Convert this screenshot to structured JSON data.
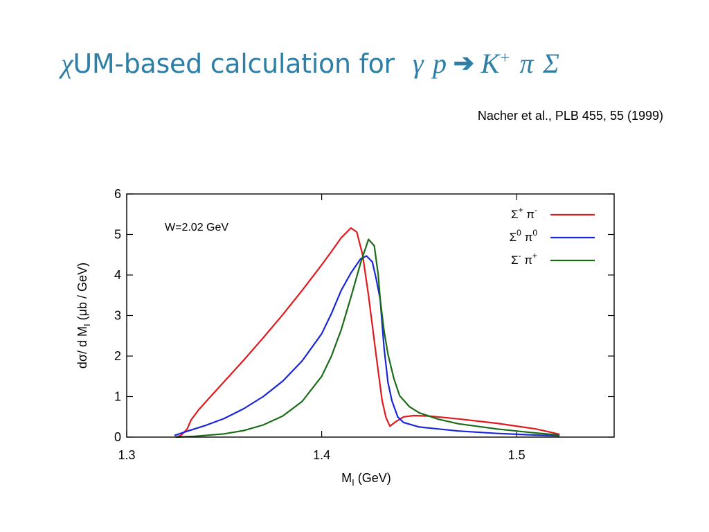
{
  "slide": {
    "title_chi": "χ",
    "title_main": "UM-based calculation for",
    "title_reaction_left": "γ p",
    "title_arrow": "➔",
    "title_reaction_k": "K",
    "title_reaction_k_charge": "+",
    "title_reaction_right": "π Σ",
    "citation": "Nacher et al., PLB 455, 55 (1999)",
    "title_color": "#2e7fa8"
  },
  "chart_data": {
    "type": "line",
    "annotation": "W=2.02 GeV",
    "xlabel_main": "M",
    "xlabel_sub": "I",
    "xlabel_rest": " (GeV)",
    "ylabel_main": "dσ/ d M",
    "ylabel_sub": "I",
    "ylabel_rest": " (μb / GeV)",
    "xlim": [
      1.3,
      1.55
    ],
    "ylim": [
      0,
      6
    ],
    "x_ticks": [
      1.3,
      1.4,
      1.5
    ],
    "x_tick_labels": [
      "1.3",
      "1.4",
      "1.5"
    ],
    "y_ticks": [
      0,
      1,
      2,
      3,
      4,
      5,
      6
    ],
    "y_tick_labels": [
      "0",
      "1",
      "2",
      "3",
      "4",
      "5",
      "6"
    ],
    "grid": false,
    "legend_position": "top-right",
    "series": [
      {
        "name": "Σ+ π-",
        "legend_base1": "Σ",
        "legend_sup1": "+",
        "legend_base2": "π",
        "legend_sup2": "-",
        "color": "#e0191c",
        "points": [
          [
            1.3255,
            0
          ],
          [
            1.328,
            0.05
          ],
          [
            1.331,
            0.2
          ],
          [
            1.333,
            0.42
          ],
          [
            1.337,
            0.68
          ],
          [
            1.343,
            1.0
          ],
          [
            1.35,
            1.37
          ],
          [
            1.36,
            1.9
          ],
          [
            1.37,
            2.45
          ],
          [
            1.38,
            3.02
          ],
          [
            1.39,
            3.62
          ],
          [
            1.4,
            4.25
          ],
          [
            1.405,
            4.58
          ],
          [
            1.41,
            4.92
          ],
          [
            1.415,
            5.16
          ],
          [
            1.418,
            5.06
          ],
          [
            1.421,
            4.5
          ],
          [
            1.424,
            3.5
          ],
          [
            1.428,
            2.0
          ],
          [
            1.431,
            0.9
          ],
          [
            1.433,
            0.48
          ],
          [
            1.435,
            0.27
          ],
          [
            1.438,
            0.38
          ],
          [
            1.442,
            0.5
          ],
          [
            1.447,
            0.53
          ],
          [
            1.455,
            0.52
          ],
          [
            1.47,
            0.45
          ],
          [
            1.49,
            0.34
          ],
          [
            1.51,
            0.2
          ],
          [
            1.522,
            0.07
          ]
        ]
      },
      {
        "name": "Σ0 π0",
        "legend_base1": "Σ",
        "legend_sup1": "0",
        "legend_base2": "π",
        "legend_sup2": "0",
        "color": "#1826d9",
        "points": [
          [
            1.3245,
            0.04
          ],
          [
            1.33,
            0.13
          ],
          [
            1.34,
            0.28
          ],
          [
            1.35,
            0.46
          ],
          [
            1.36,
            0.7
          ],
          [
            1.37,
            1.0
          ],
          [
            1.38,
            1.38
          ],
          [
            1.39,
            1.88
          ],
          [
            1.4,
            2.55
          ],
          [
            1.405,
            3.05
          ],
          [
            1.41,
            3.62
          ],
          [
            1.415,
            4.05
          ],
          [
            1.42,
            4.4
          ],
          [
            1.423,
            4.47
          ],
          [
            1.426,
            4.32
          ],
          [
            1.428,
            3.9
          ],
          [
            1.43,
            3.4
          ],
          [
            1.432,
            2.2
          ],
          [
            1.434,
            1.35
          ],
          [
            1.436,
            0.9
          ],
          [
            1.439,
            0.5
          ],
          [
            1.442,
            0.36
          ],
          [
            1.45,
            0.25
          ],
          [
            1.47,
            0.15
          ],
          [
            1.49,
            0.09
          ],
          [
            1.51,
            0.05
          ],
          [
            1.522,
            0.03
          ]
        ]
      },
      {
        "name": "Σ- π+",
        "legend_base1": "Σ",
        "legend_sup1": "-",
        "legend_base2": "π",
        "legend_sup2": "+",
        "color": "#1a6b16",
        "points": [
          [
            1.325,
            0
          ],
          [
            1.335,
            0.02
          ],
          [
            1.35,
            0.08
          ],
          [
            1.36,
            0.16
          ],
          [
            1.37,
            0.3
          ],
          [
            1.38,
            0.52
          ],
          [
            1.39,
            0.88
          ],
          [
            1.4,
            1.5
          ],
          [
            1.405,
            2.0
          ],
          [
            1.41,
            2.65
          ],
          [
            1.415,
            3.45
          ],
          [
            1.42,
            4.3
          ],
          [
            1.424,
            4.88
          ],
          [
            1.427,
            4.72
          ],
          [
            1.429,
            4.0
          ],
          [
            1.43,
            3.4
          ],
          [
            1.432,
            2.62
          ],
          [
            1.434,
            2.05
          ],
          [
            1.437,
            1.45
          ],
          [
            1.44,
            1.02
          ],
          [
            1.445,
            0.75
          ],
          [
            1.45,
            0.6
          ],
          [
            1.46,
            0.44
          ],
          [
            1.47,
            0.33
          ],
          [
            1.49,
            0.2
          ],
          [
            1.51,
            0.1
          ],
          [
            1.522,
            0.05
          ]
        ]
      }
    ]
  }
}
